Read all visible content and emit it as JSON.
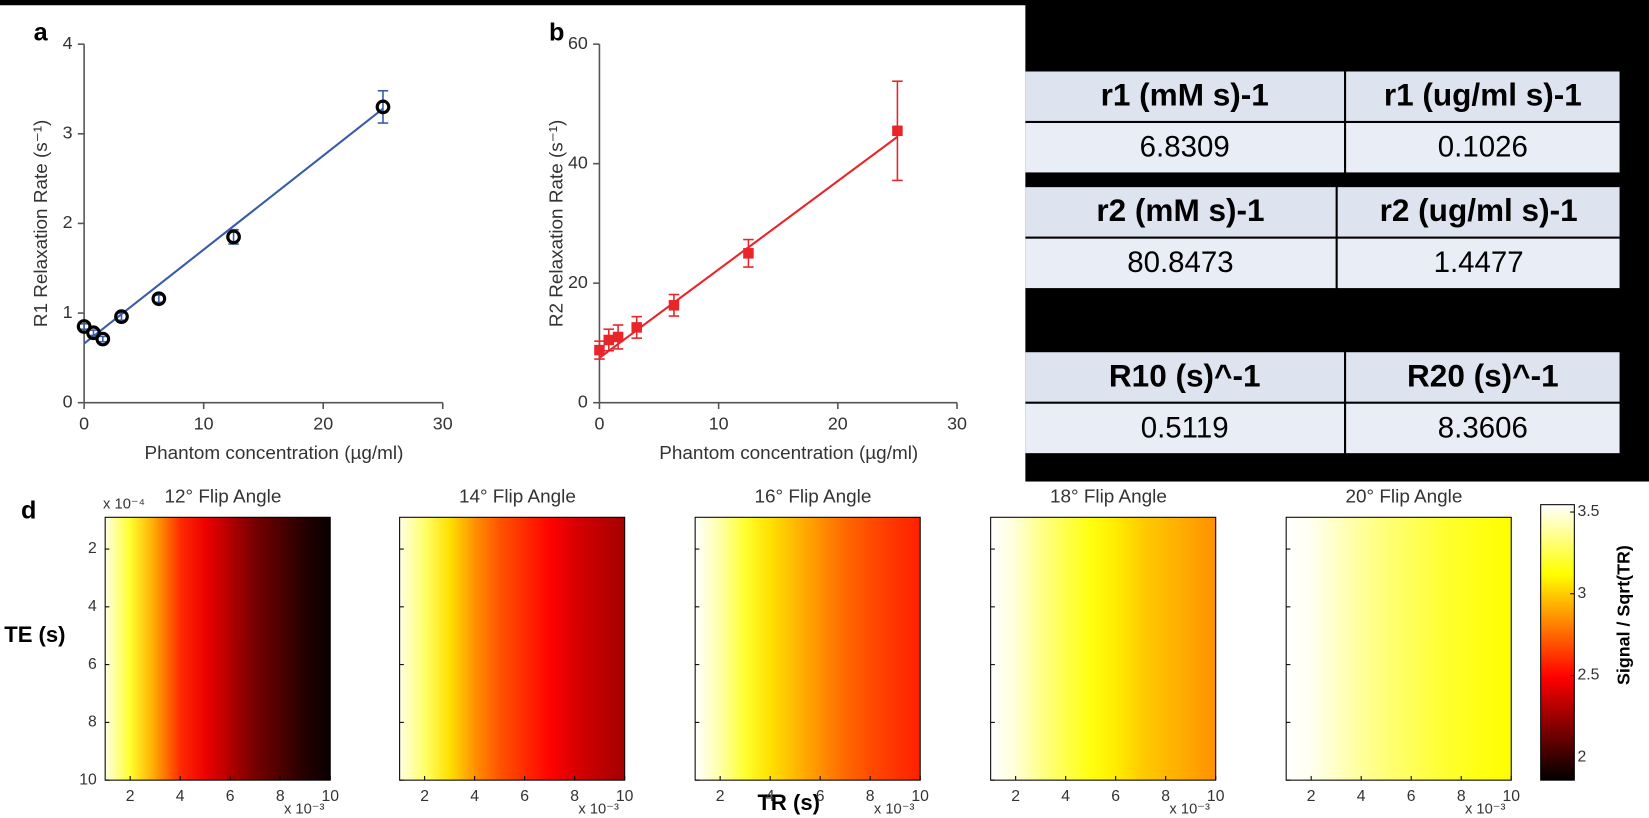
{
  "chart_data": [
    {
      "type": "scatter",
      "label": "a",
      "xlabel": "Phantom concentration (µg/ml)",
      "ylabel": "R1 Relaxation Rate  (s⁻¹)",
      "xlim": [
        0,
        30
      ],
      "xticks": [
        0,
        10,
        20,
        30
      ],
      "ylim": [
        0,
        4
      ],
      "yticks": [
        0,
        1,
        2,
        3,
        4
      ],
      "x": [
        0,
        0.78125,
        1.5625,
        3.125,
        6.25,
        12.5,
        25
      ],
      "series": [
        {
          "color": "#000000",
          "marker": "open-circle",
          "error_color": "#3a5ba8",
          "values": [
            0.85,
            0.78,
            0.71,
            0.96,
            1.16,
            1.85,
            3.3
          ],
          "errors": [
            0.03,
            0.03,
            0.03,
            0.04,
            0.04,
            0.08,
            0.18
          ]
        }
      ],
      "fit_line": {
        "color": "#3a5ba8",
        "x": [
          0,
          25
        ],
        "values": [
          0.66,
          3.28
        ]
      }
    },
    {
      "type": "scatter",
      "label": "b",
      "xlabel": "Phantom concentration (µg/ml)",
      "ylabel": "R2 Relaxation Rate  (s⁻¹)",
      "xlim": [
        0,
        30
      ],
      "xticks": [
        0,
        10,
        20,
        30
      ],
      "ylim": [
        0,
        60
      ],
      "yticks": [
        0,
        20,
        40,
        60
      ],
      "x": [
        0,
        0.78125,
        1.5625,
        3.125,
        6.25,
        12.5,
        25
      ],
      "series": [
        {
          "color": "#e8262a",
          "marker": "square",
          "error_color": "#e8262a",
          "values": [
            8.8,
            10.5,
            11.0,
            12.6,
            16.3,
            25.0,
            45.5
          ],
          "errors": [
            1.5,
            1.8,
            2.0,
            1.8,
            1.8,
            2.3,
            8.3
          ]
        }
      ],
      "fit_line": {
        "color": "#e8262a",
        "x": [
          0,
          25
        ],
        "values": [
          7.5,
          44.5
        ]
      }
    },
    {
      "type": "heatmap",
      "label": "d",
      "xlabel": "TR (s)",
      "ylabel": "TE (s)",
      "x_exponent": "x 10⁻³",
      "y_exponent": "x 10⁻⁴",
      "colorbar_label": "Signal / Sqrt(TR)",
      "colormap": "hot",
      "clim": [
        1.86,
        3.545
      ],
      "cticks": [
        2,
        2.5,
        3,
        3.5
      ],
      "xlim": [
        1,
        10
      ],
      "xticks": [
        2,
        4,
        6,
        8,
        10
      ],
      "ylim": [
        0.9,
        10
      ],
      "yticks": [
        2,
        4,
        6,
        8,
        10
      ],
      "x": [
        1,
        2,
        3,
        4,
        5,
        6,
        7,
        8,
        9,
        10
      ],
      "panels": [
        {
          "title": "12° Flip Angle",
          "values": [
            3.5,
            3.2,
            2.9,
            2.6,
            2.45,
            2.3,
            2.15,
            2.05,
            1.95,
            1.88
          ]
        },
        {
          "title": "14° Flip Angle",
          "values": [
            3.5,
            3.3,
            3.05,
            2.85,
            2.7,
            2.6,
            2.5,
            2.4,
            2.33,
            2.27
          ]
        },
        {
          "title": "16° Flip Angle",
          "values": [
            3.55,
            3.4,
            3.2,
            3.05,
            2.95,
            2.85,
            2.75,
            2.68,
            2.62,
            2.57
          ]
        },
        {
          "title": "18° Flip Angle",
          "values": [
            3.55,
            3.48,
            3.35,
            3.25,
            3.15,
            3.08,
            3.0,
            2.95,
            2.9,
            2.85
          ]
        },
        {
          "title": "20° Flip Angle",
          "values": [
            3.55,
            3.52,
            3.45,
            3.38,
            3.32,
            3.27,
            3.22,
            3.18,
            3.15,
            3.12
          ]
        }
      ]
    }
  ],
  "tables": [
    {
      "header": [
        "r1 (mM s)-1",
        "r1 (ug/ml s)-1"
      ],
      "row": [
        6.8309,
        0.1026
      ]
    },
    {
      "header": [
        "r2 (mM s)-1",
        "r2 (ug/ml s)-1"
      ],
      "row": [
        80.8473,
        1.4477
      ]
    },
    {
      "header": [
        "R10 (s)^-1",
        "R20 (s)^-1"
      ],
      "row": [
        0.5119,
        8.3606
      ]
    }
  ]
}
